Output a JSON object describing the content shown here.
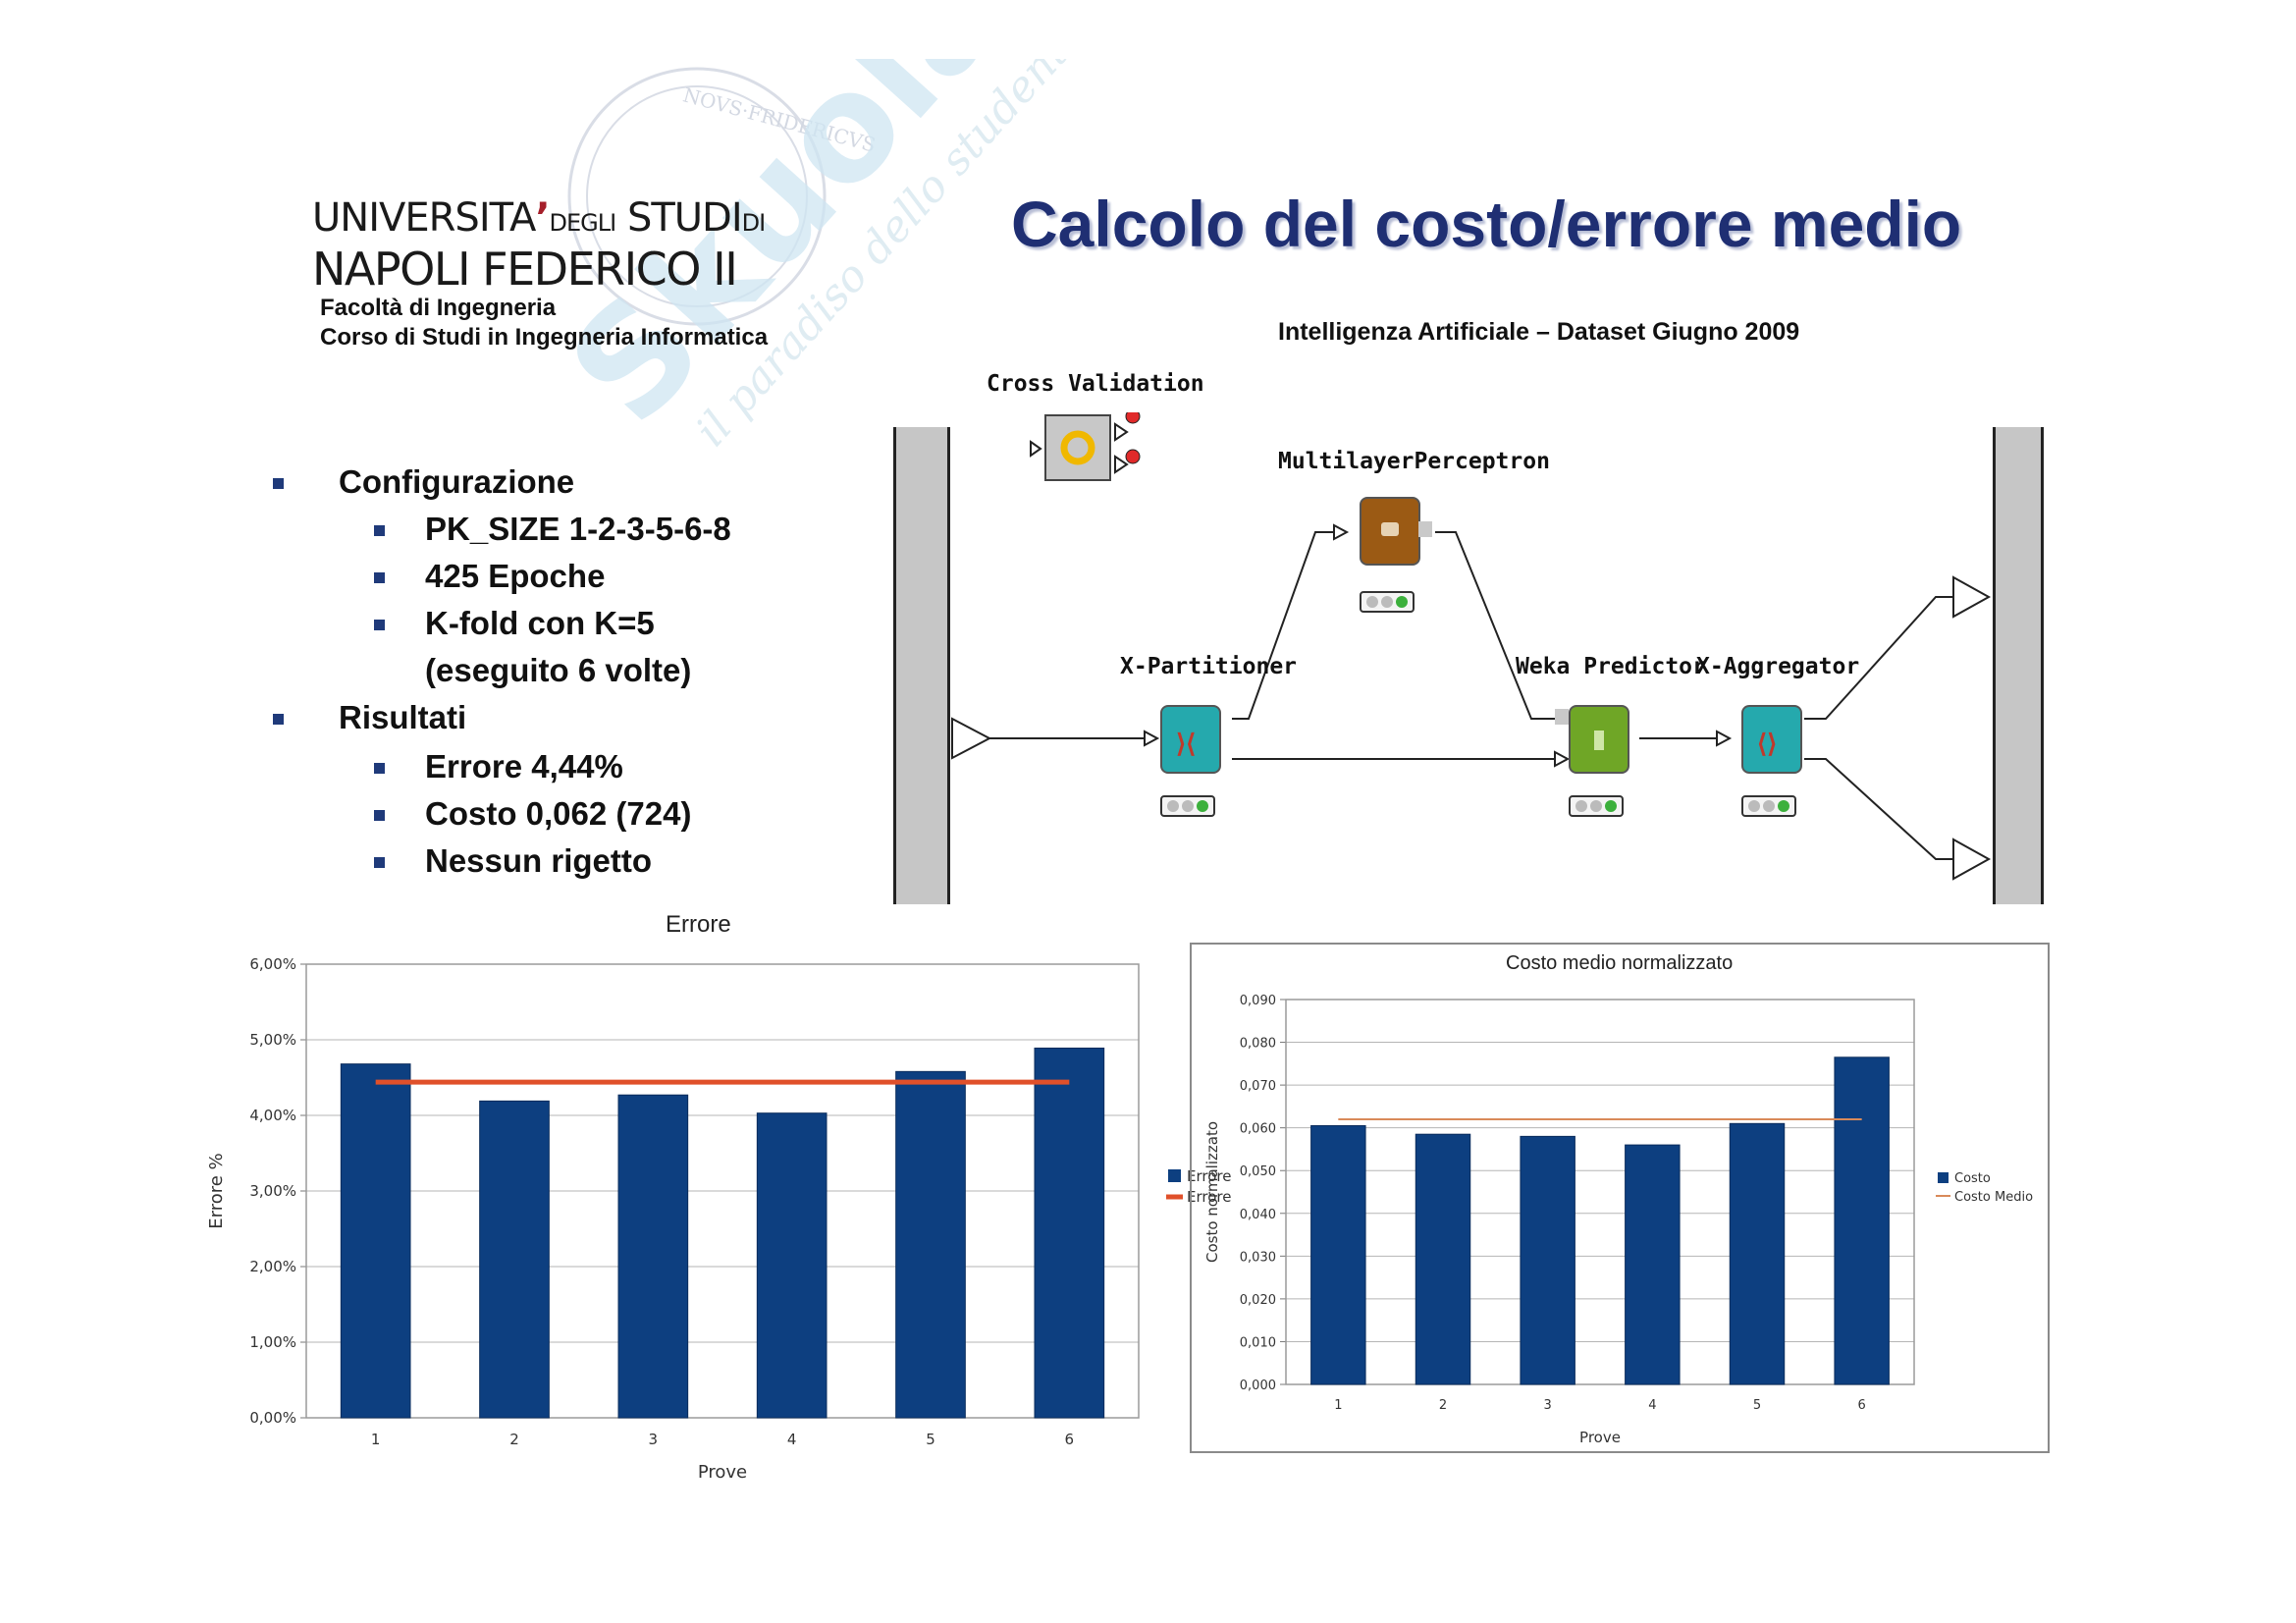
{
  "header": {
    "logo": {
      "line1_main": "UNIVERSITA",
      "line1_apostrophe": "’",
      "line1_small": "DEGLI",
      "line1_studi": "STUDI",
      "line1_di": "DI",
      "line2": "NAPOLI FEDERICO II"
    },
    "faculty": "Facoltà di Ingegneria",
    "course": "Corso di Studi in Ingegneria Informatica",
    "title": "Calcolo del costo/errore medio",
    "subtitle": "Intelligenza Artificiale – Dataset Giugno 2009"
  },
  "watermark": {
    "text_main": "Skuola.net",
    "text_tag": "il paradiso dello studente",
    "seal_text": "NOVS·FRIDERICVS"
  },
  "bullets": [
    {
      "label": "Configurazione",
      "children": [
        "PK_SIZE 1-2-3-5-6-8",
        "425 Epoche",
        "K-fold con K=5",
        "(eseguito 6 volte)"
      ]
    },
    {
      "label": "Risultati",
      "children": [
        "Errore 4,44%",
        "Costo 0,062 (724)",
        "Nessun rigetto"
      ]
    }
  ],
  "workflow": {
    "nodes": {
      "cross_validation": "Cross Validation",
      "mlp": "MultilayerPerceptron",
      "partitioner": "X-Partitioner",
      "predictor": "Weka Predictor",
      "aggregator": "X-Aggregator"
    },
    "colors": {
      "partitioner": "#25a9ad",
      "mlp": "#9b5a14",
      "predictor": "#6fa626",
      "aggregator": "#25a9ad",
      "light_on": "#3cb03c",
      "port_red": "#e02a2a"
    }
  },
  "chart_data": [
    {
      "type": "bar",
      "title": "Errore",
      "xlabel": "Prove",
      "ylabel": "Errore %",
      "categories": [
        "1",
        "2",
        "3",
        "4",
        "5",
        "6"
      ],
      "yticks": [
        "0,00%",
        "1,00%",
        "2,00%",
        "3,00%",
        "4,00%",
        "5,00%",
        "6,00%"
      ],
      "ylim": [
        0,
        6
      ],
      "series": [
        {
          "name": "Errore %",
          "type": "bar",
          "color": "#0d3f80",
          "values": [
            4.68,
            4.19,
            4.27,
            4.03,
            4.58,
            4.89
          ]
        },
        {
          "name": "Errore Medio",
          "type": "line",
          "color": "#e0502a",
          "values": [
            4.44,
            4.44,
            4.44,
            4.44,
            4.44,
            4.44
          ]
        }
      ],
      "legend": "right",
      "grid": true
    },
    {
      "type": "bar",
      "title": "Costo medio normalizzato",
      "xlabel": "Prove",
      "ylabel": "Costo normalizzato",
      "categories": [
        "1",
        "2",
        "3",
        "4",
        "5",
        "6"
      ],
      "yticks": [
        "0,000",
        "0,010",
        "0,020",
        "0,030",
        "0,040",
        "0,050",
        "0,060",
        "0,070",
        "0,080",
        "0,090"
      ],
      "ylim": [
        0,
        0.09
      ],
      "series": [
        {
          "name": "Costo",
          "type": "bar",
          "color": "#0d3f80",
          "values": [
            0.0605,
            0.0585,
            0.058,
            0.056,
            0.061,
            0.0765
          ]
        },
        {
          "name": "Costo Medio",
          "type": "line",
          "color": "#d98a5a",
          "values": [
            0.062,
            0.062,
            0.062,
            0.062,
            0.062,
            0.062
          ]
        }
      ],
      "legend": "right",
      "grid": true
    }
  ]
}
